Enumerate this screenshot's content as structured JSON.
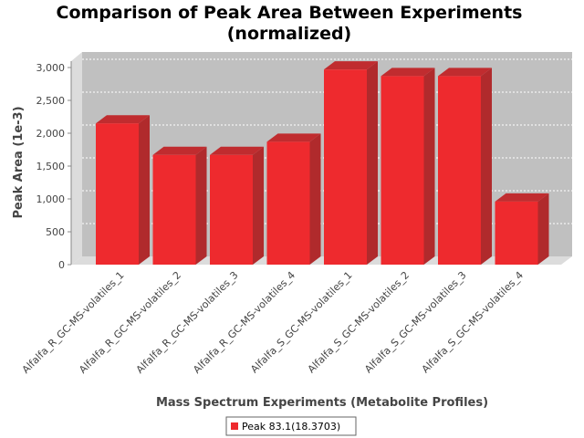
{
  "chart_data": {
    "type": "bar",
    "title_line1": "Comparison of Peak Area Between Experiments",
    "title_line2": "(normalized)",
    "xlabel": "Mass Spectrum Experiments (Metabolite Profiles)",
    "ylabel": "Peak Area (1e-3)",
    "categories": [
      "Alfalfa_R_GC-MS-volatiles_1",
      "Alfalfa_R_GC-MS-volatiles_2",
      "Alfalfa_R_GC-MS-volatiles_3",
      "Alfalfa_R_GC-MS-volatiles_4",
      "Alfalfa_S_GC-MS-volatiles_1",
      "Alfalfa_S_GC-MS-volatiles_2",
      "Alfalfa_S_GC-MS-volatiles_3",
      "Alfalfa_S_GC-MS-volatiles_4"
    ],
    "series": [
      {
        "name": "Peak 83.1(18.3703)",
        "color": "#ee2a2e",
        "values": [
          2150,
          1670,
          1670,
          1870,
          2970,
          2870,
          2870,
          960
        ]
      }
    ],
    "ylim": [
      0,
      3000
    ],
    "yticks": [
      0,
      500,
      1000,
      1500,
      2000,
      2500,
      3000
    ],
    "ytick_labels": [
      "0",
      "500",
      "1,000",
      "1,500",
      "2,000",
      "2,500",
      "3,000"
    ],
    "grid": true,
    "legend_position": "bottom"
  }
}
